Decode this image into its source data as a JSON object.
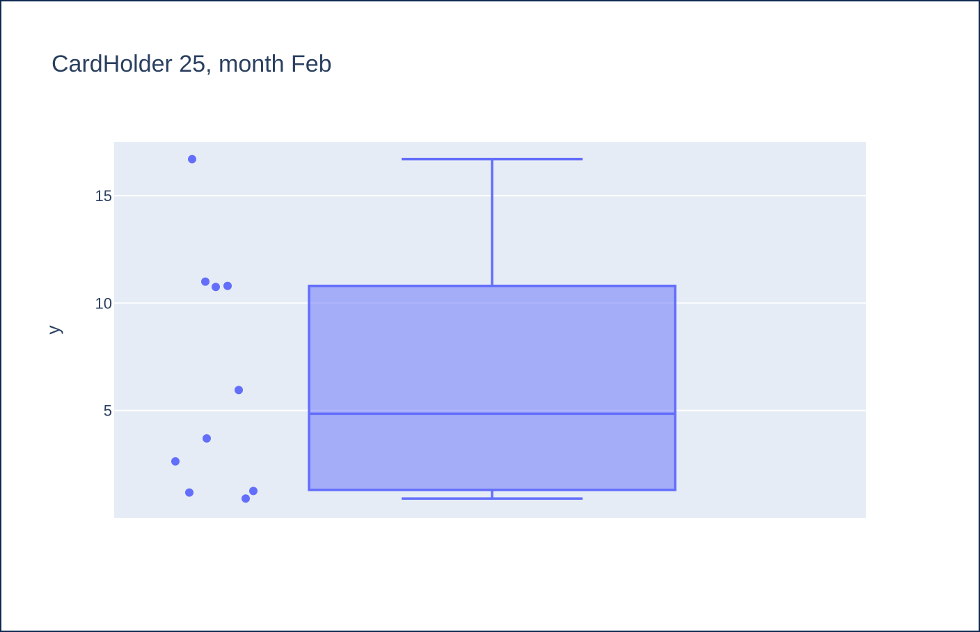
{
  "chart_data": {
    "type": "box",
    "title": "CardHolder 25, month Feb",
    "xlabel": "",
    "ylabel": "y",
    "ylim": [
      0.0,
      17.5
    ],
    "yticks": [
      5,
      10,
      15
    ],
    "ytick_labels": [
      "5",
      "10",
      "15"
    ],
    "grid": true,
    "show_points": true,
    "series": [
      {
        "box": {
          "min": 0.9,
          "q1": 1.3,
          "median": 4.85,
          "q3": 10.8,
          "max": 16.7
        },
        "points": [
          16.7,
          11.0,
          10.75,
          10.8,
          5.95,
          3.7,
          2.63,
          1.18,
          0.9,
          1.25
        ]
      }
    ],
    "colors": {
      "marker": "#636efa",
      "box_fill": "rgba(99,110,250,0.5)",
      "plot_bg": "#e5ecf6",
      "grid": "#ffffff",
      "text": "#2a3f5f"
    }
  }
}
